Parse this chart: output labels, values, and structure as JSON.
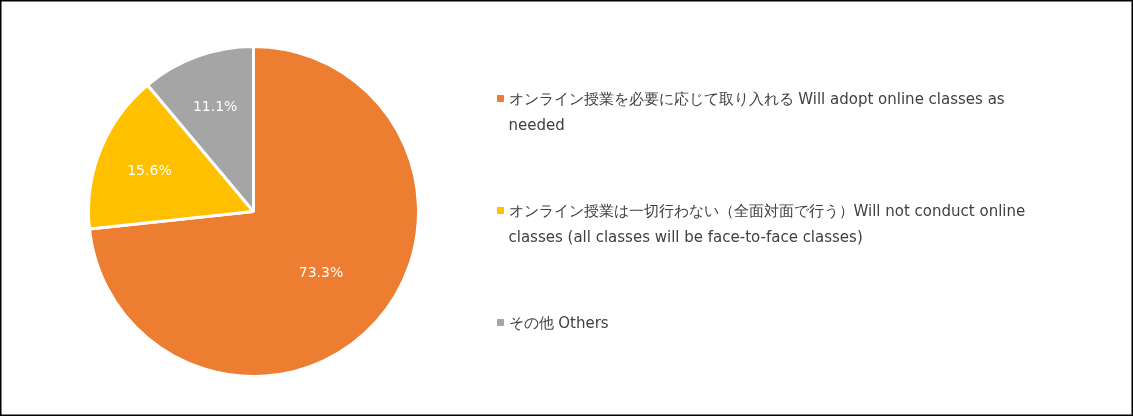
{
  "chart_data": {
    "type": "pie",
    "categories": [
      "オンライン授業を必要に応じて取り入れる Will adopt online classes as needed",
      "オンライン授業は一切行わない（全面対面で行う）Will not conduct online classes (all classes will be face-to-face classes)",
      "その他 Others"
    ],
    "values": [
      73.3,
      15.6,
      11.1
    ],
    "colors": [
      "#ed7d31",
      "#ffc000",
      "#a5a5a5"
    ],
    "value_labels": [
      "73.3%",
      "15.6%",
      "11.1%"
    ],
    "legend": "right"
  }
}
